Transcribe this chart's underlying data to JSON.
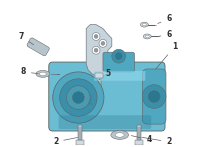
{
  "bg_color": "#ffffff",
  "fig_width": 2.0,
  "fig_height": 1.47,
  "dpi": 100,
  "pump_blue": "#6bbdd4",
  "pump_blue2": "#4fa8c0",
  "pump_dark": "#3a90aa",
  "pump_highlight": "#90d8ec",
  "pump_shadow": "#2a7890",
  "bracket_fill": "#c8d4dc",
  "bracket_edge": "#707880",
  "part_gray": "#b8c4cc",
  "part_gray2": "#d0dce4",
  "line_color": "#606060",
  "label_color": "#303030",
  "label_fs": 5.5,
  "lw": 0.5
}
